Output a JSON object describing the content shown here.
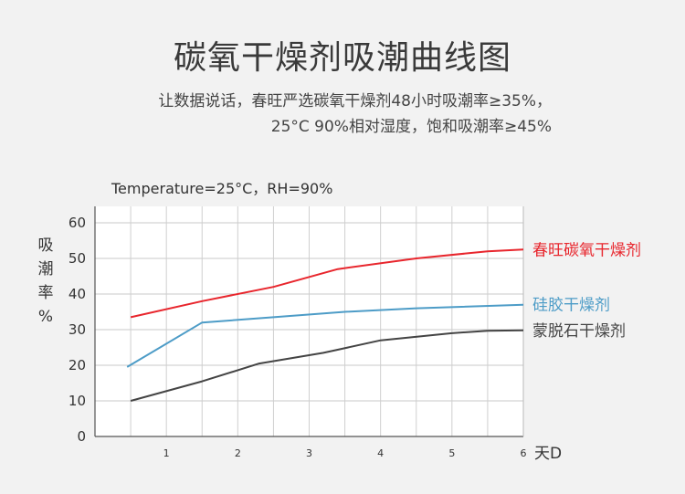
{
  "header": {
    "title": "碳氧干燥剂吸潮曲线图",
    "subtitle_line1": "让数据说话，春旺严选碳氧干燥剂48小时吸潮率≥35%，",
    "subtitle_line2": "25°C 90%相对湿度，饱和吸潮率≥45%",
    "condition": "Temperature=25°C，RH=90%"
  },
  "chart_data": {
    "type": "line",
    "xlabel": "天D",
    "ylabel_chars": [
      "吸",
      "潮",
      "率",
      "%"
    ],
    "x_ticks": [
      1,
      2,
      3,
      4,
      5,
      6
    ],
    "y_ticks": [
      0,
      10,
      20,
      30,
      40,
      50,
      60
    ],
    "xlim": [
      0,
      6
    ],
    "ylim": [
      0,
      60
    ],
    "grid": true,
    "series": [
      {
        "name": "春旺碳氧干燥剂",
        "color": "#e8262d",
        "points": [
          [
            0.5,
            33.5
          ],
          [
            1.5,
            38
          ],
          [
            2.5,
            42
          ],
          [
            3.4,
            47
          ],
          [
            4.5,
            50
          ],
          [
            5.5,
            52
          ],
          [
            6,
            52.5
          ]
        ]
      },
      {
        "name": "硅胶干燥剂",
        "color": "#4d9cc7",
        "points": [
          [
            0.45,
            19.5
          ],
          [
            1.5,
            32
          ],
          [
            2.5,
            33.5
          ],
          [
            3.5,
            35
          ],
          [
            4.5,
            36
          ],
          [
            6,
            37
          ]
        ]
      },
      {
        "name": "蒙脱石干燥剂",
        "color": "#444444",
        "points": [
          [
            0.5,
            10
          ],
          [
            1.5,
            15.5
          ],
          [
            2.3,
            20.5
          ],
          [
            3.2,
            23.5
          ],
          [
            4,
            27
          ],
          [
            5,
            29
          ],
          [
            5.5,
            29.7
          ],
          [
            6,
            29.8
          ]
        ]
      }
    ]
  }
}
